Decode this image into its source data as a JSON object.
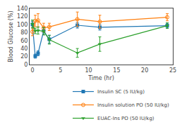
{
  "chart_data": {
    "type": "line",
    "xlabel": "Time (hr)",
    "ylabel": "Blood Glucose (%)",
    "x": [
      0,
      0.5,
      1,
      2,
      3,
      8,
      12,
      24
    ],
    "xlim": [
      -0.5,
      25
    ],
    "ylim": [
      0,
      140
    ],
    "xticks": [
      0,
      5,
      10,
      15,
      20,
      25
    ],
    "yticks": [
      0,
      20,
      40,
      60,
      80,
      100,
      120,
      140
    ],
    "grid": false,
    "legend": "lower right",
    "series": [
      {
        "name": "Insulin SC (5 IU/kg)",
        "values": [
          100,
          21,
          28,
          84,
          63,
          98,
          93,
          97
        ],
        "yerr": [
          8,
          5,
          6,
          10,
          10,
          7,
          7,
          6
        ],
        "marker": "square",
        "line_style": "solid"
      },
      {
        "name": "Insulin solution PO (50 IU/kg)",
        "values": [
          82,
          109,
          110,
          92,
          94,
          113,
          107,
          118
        ],
        "yerr": [
          10,
          14,
          17,
          11,
          9,
          18,
          16,
          9
        ],
        "marker": "circle-open",
        "line_style": "solid"
      },
      {
        "name": "EUAC-Ins PO (50 IU/kg)",
        "values": [
          101,
          84,
          85,
          83,
          62,
          29,
          51,
          97
        ],
        "yerr": [
          10,
          7,
          9,
          9,
          11,
          11,
          18,
          7
        ],
        "marker": "triangle-down",
        "line_style": "solid"
      }
    ]
  }
}
